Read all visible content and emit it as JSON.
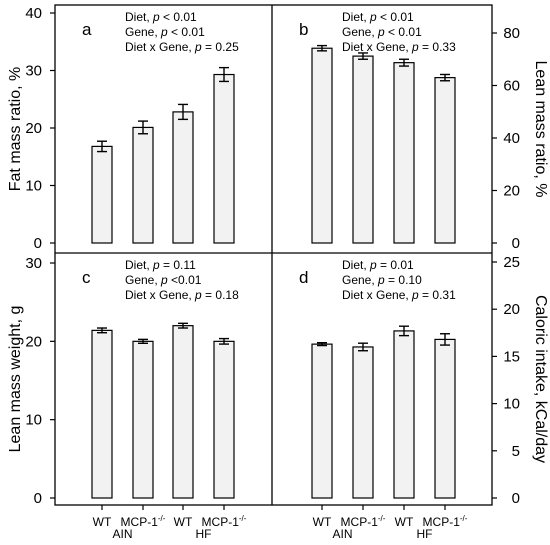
{
  "chart_data": [
    {
      "type": "bar",
      "panel": "a",
      "ylabel": "Fat mass ratio, %",
      "y_axis_side": "left",
      "ylim": [
        0,
        40
      ],
      "yticks": [
        0,
        10,
        20,
        30,
        40
      ],
      "categories": [
        "WT",
        "MCP-1-/-",
        "WT",
        "MCP-1-/-"
      ],
      "values": [
        16.8,
        20.1,
        22.8,
        29.3
      ],
      "errors": [
        0.9,
        1.1,
        1.3,
        1.2
      ],
      "stats": [
        {
          "prefix": "Diet,",
          "p": "p",
          "rest": " < 0.01"
        },
        {
          "prefix": "Gene,",
          "p": "p",
          "rest": " < 0.01"
        },
        {
          "prefix": "Diet x Gene,",
          "p": "p",
          "rest": " = 0.25"
        }
      ]
    },
    {
      "type": "bar",
      "panel": "b",
      "ylabel": "Lean mass ratio, %",
      "y_axis_side": "right",
      "ylim": [
        0,
        80
      ],
      "yticks": [
        0,
        20,
        40,
        60,
        80
      ],
      "categories": [
        "WT",
        "MCP-1-/-",
        "WT",
        "MCP-1-/-"
      ],
      "values": [
        74.2,
        71.2,
        68.7,
        63.0
      ],
      "errors": [
        1.0,
        1.2,
        1.3,
        1.2
      ],
      "stats": [
        {
          "prefix": "Diet,",
          "p": "p",
          "rest": " < 0.01"
        },
        {
          "prefix": "Gene,",
          "p": "p",
          "rest": " < 0.01"
        },
        {
          "prefix": "Diet x Gene,",
          "p": "p",
          "rest": " = 0.33"
        }
      ]
    },
    {
      "type": "bar",
      "panel": "c",
      "ylabel": "Lean mass weight, g",
      "y_axis_side": "left",
      "ylim": [
        0,
        30
      ],
      "yticks": [
        0,
        10,
        20,
        30
      ],
      "categories": [
        "WT",
        "MCP-1-/-",
        "WT",
        "MCP-1-/-"
      ],
      "values": [
        21.4,
        20.0,
        22.0,
        20.0
      ],
      "errors": [
        0.3,
        0.25,
        0.3,
        0.35
      ],
      "stats": [
        {
          "prefix": "Diet,",
          "p": "p",
          "rest": " = 0.11"
        },
        {
          "prefix": "Gene,",
          "p": "p",
          "rest": " <0.01"
        },
        {
          "prefix": "Diet x Gene,",
          "p": "p",
          "rest": " = 0.18"
        }
      ]
    },
    {
      "type": "bar",
      "panel": "d",
      "ylabel": "Caloric intake, kCal/day",
      "y_axis_side": "right",
      "ylim": [
        0,
        25
      ],
      "yticks": [
        0,
        5,
        10,
        15,
        20,
        25
      ],
      "categories": [
        "WT",
        "MCP-1-/-",
        "WT",
        "MCP-1-/-"
      ],
      "values": [
        16.3,
        16.0,
        17.7,
        16.8
      ],
      "errors": [
        0.15,
        0.4,
        0.5,
        0.6
      ],
      "stats": [
        {
          "prefix": "Diet,",
          "p": "p",
          "rest": " = 0.01"
        },
        {
          "prefix": "Gene,",
          "p": "p",
          "rest": " = 0.10"
        },
        {
          "prefix": "Diet x Gene,",
          "p": "p",
          "rest": " = 0.31"
        }
      ]
    }
  ],
  "x_axis": {
    "category_labels": [
      {
        "base": "WT",
        "sup": ""
      },
      {
        "base": "MCP-1",
        "sup": "-/-"
      },
      {
        "base": "WT",
        "sup": ""
      },
      {
        "base": "MCP-1",
        "sup": "-/-"
      }
    ],
    "groups": [
      "AIN",
      "HF"
    ]
  },
  "colors": {
    "bar_fill": "#f2f2f2",
    "bar_stroke": "#000000",
    "axis": "#000000"
  }
}
